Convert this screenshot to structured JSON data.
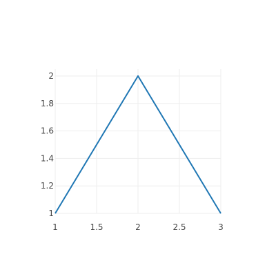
{
  "chart_data": {
    "type": "line",
    "title": "",
    "xlabel": "",
    "ylabel": "",
    "x": [
      1,
      2,
      3
    ],
    "series": [
      {
        "values": [
          1,
          2,
          1
        ],
        "color": "#1f77b4"
      }
    ],
    "xlim": [
      1,
      3
    ],
    "ylim": [
      1,
      2
    ],
    "xticks": [
      1,
      1.5,
      2,
      2.5,
      3
    ],
    "xtick_labels": [
      "1",
      "1.5",
      "2",
      "2.5",
      "3"
    ],
    "yticks": [
      1,
      1.2,
      1.4,
      1.6,
      1.8,
      2
    ],
    "ytick_labels": [
      "1",
      "1.2",
      "1.4",
      "1.6",
      "1.8",
      "2"
    ],
    "grid": true,
    "legend": "none"
  }
}
